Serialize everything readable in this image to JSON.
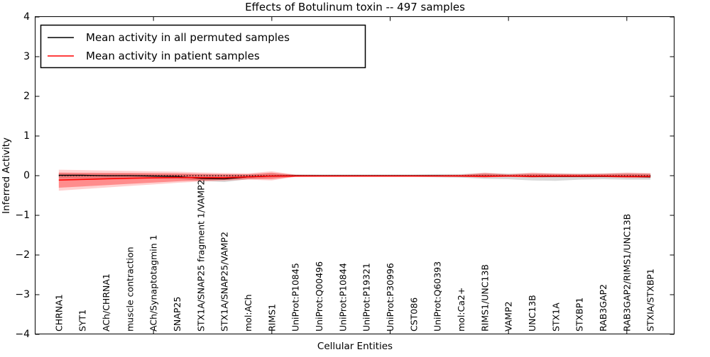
{
  "figure": {
    "title": "Effects of Botulinum toxin -- 497 samples"
  },
  "legend": {
    "position": "upper left",
    "entries": [
      {
        "label": "Mean activity in all permuted samples",
        "color": "#000000"
      },
      {
        "label": "Mean activity in patient samples",
        "color": "#ff0000"
      }
    ]
  },
  "chart_data": {
    "type": "line",
    "title": "Effects of Botulinum toxin -- 497 samples",
    "xlabel": "Cellular Entities",
    "ylabel": "Inferred Activity",
    "ylim": [
      -4,
      4
    ],
    "yticks": [
      4,
      3,
      2,
      1,
      0,
      -1,
      -2,
      -3,
      -4
    ],
    "ytick_labels": [
      "4",
      "3",
      "2",
      "1",
      "0",
      "−1",
      "−2",
      "−3",
      "−4"
    ],
    "xlim": [
      0,
      27
    ],
    "xtick_positions": [
      0,
      5,
      10,
      15,
      20,
      25
    ],
    "grid": false,
    "legend_position": "upper left",
    "reference_line": {
      "y": 0,
      "style": "dotted",
      "color": "#000000"
    },
    "categories": [
      "CHRNA1",
      "SYT1",
      "ACh/CHRNA1",
      "muscle contraction",
      "ACh/Synaptotagmin 1",
      "SNAP25",
      "STX1A/SNAP25 fragment 1/VAMP2",
      "STX1A/SNAP25/VAMP2",
      "mol:ACh",
      "RIMS1",
      "UniProt:P10845",
      "UniProt:Q00496",
      "UniProt:P10844",
      "UniProt:P19321",
      "UniProt:P30996",
      "CST086",
      "UniProt:Q60393",
      "mol:Ca2+",
      "RIMS1/UNC13B",
      "VAMP2",
      "UNC13B",
      "STX1A",
      "STXBP1",
      "RAB3GAP2",
      "RAB3GAP2/RIMS1/UNC13B",
      "STXIA/STXBP1"
    ],
    "series": [
      {
        "name": "Mean activity in all permuted samples",
        "color": "#000000",
        "values": [
          0.01,
          0.01,
          0.0,
          0.0,
          -0.01,
          -0.02,
          -0.07,
          -0.08,
          -0.03,
          -0.01,
          0.0,
          0.0,
          0.0,
          0.0,
          0.0,
          0.0,
          0.0,
          -0.01,
          -0.01,
          -0.01,
          -0.02,
          -0.02,
          -0.02,
          -0.02,
          -0.02,
          -0.03
        ],
        "band_low": [
          -0.07,
          -0.07,
          -0.07,
          -0.07,
          -0.07,
          -0.08,
          -0.13,
          -0.16,
          -0.09,
          -0.05,
          -0.03,
          -0.03,
          -0.03,
          -0.03,
          -0.03,
          -0.03,
          -0.04,
          -0.05,
          -0.08,
          -0.09,
          -0.12,
          -0.13,
          -0.1,
          -0.09,
          -0.1,
          -0.1
        ],
        "band_high": [
          0.06,
          0.05,
          0.05,
          0.05,
          0.04,
          0.04,
          0.04,
          0.03,
          0.03,
          0.05,
          0.03,
          0.03,
          0.03,
          0.03,
          0.03,
          0.03,
          0.04,
          0.04,
          0.06,
          0.05,
          0.05,
          0.05,
          0.05,
          0.05,
          0.06,
          0.05
        ]
      },
      {
        "name": "Mean activity in patient samples",
        "color": "#ff0000",
        "values": [
          -0.11,
          -0.095,
          -0.08,
          -0.065,
          -0.055,
          -0.045,
          -0.05,
          -0.05,
          -0.03,
          -0.01,
          -0.01,
          -0.01,
          -0.01,
          -0.01,
          -0.01,
          -0.01,
          -0.01,
          -0.01,
          -0.015,
          -0.01,
          -0.015,
          -0.01,
          -0.01,
          -0.01,
          -0.02,
          -0.02
        ],
        "band_low": [
          -0.38,
          -0.34,
          -0.3,
          -0.26,
          -0.22,
          -0.18,
          -0.15,
          -0.13,
          -0.1,
          -0.12,
          -0.03,
          -0.02,
          -0.02,
          -0.02,
          -0.02,
          -0.02,
          -0.02,
          -0.03,
          -0.05,
          -0.03,
          -0.05,
          -0.04,
          -0.04,
          -0.04,
          -0.06,
          -0.06
        ],
        "band_high": [
          0.15,
          0.14,
          0.13,
          0.12,
          0.11,
          0.1,
          0.08,
          0.07,
          0.06,
          0.11,
          0.03,
          0.02,
          0.02,
          0.02,
          0.02,
          0.02,
          0.02,
          0.03,
          0.08,
          0.04,
          0.08,
          0.06,
          0.05,
          0.06,
          0.08,
          0.07
        ]
      }
    ]
  }
}
